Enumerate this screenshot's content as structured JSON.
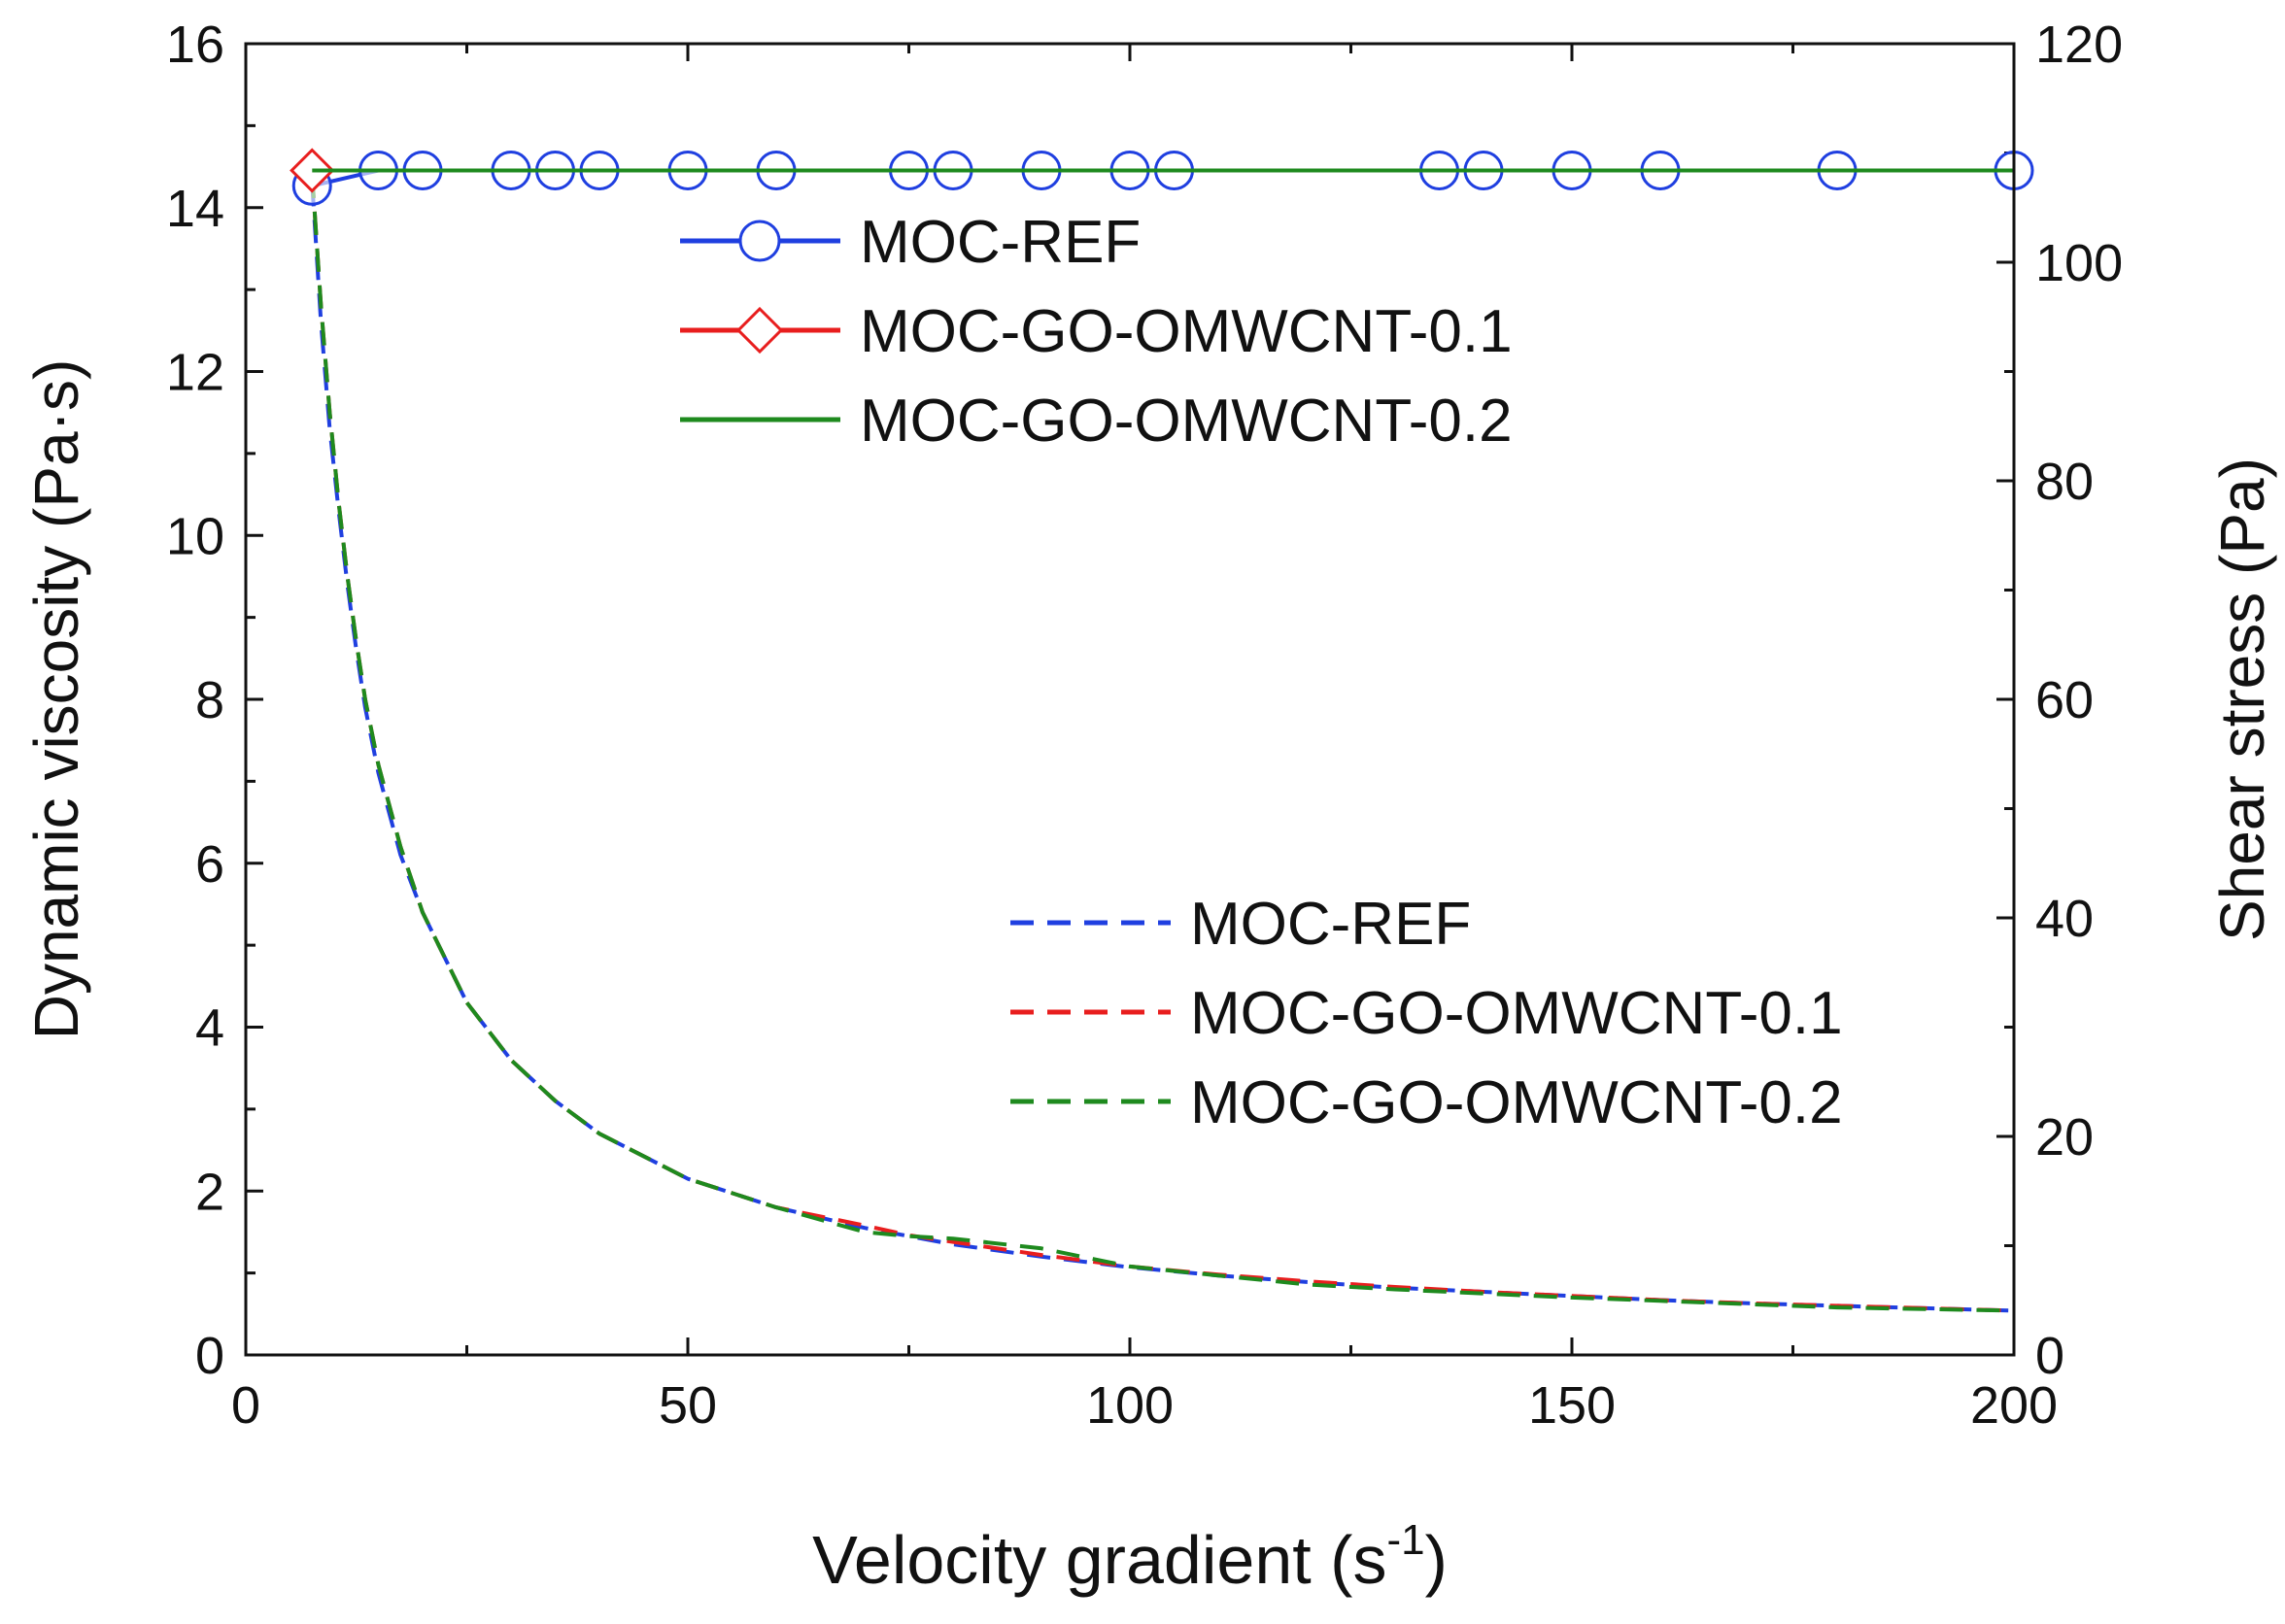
{
  "chart_data": {
    "type": "line",
    "x_axis": {
      "label": "Velocity gradient (s",
      "label_sup": "-1",
      "label_end": ")",
      "range": [
        0,
        200
      ],
      "ticks": [
        0,
        50,
        100,
        150,
        200
      ],
      "tick_labels": [
        "0",
        "50",
        "100",
        "150",
        "200"
      ]
    },
    "y_left": {
      "label": "Dynamic viscosity (Pa·s)",
      "range": [
        0,
        16
      ],
      "ticks": [
        0,
        2,
        4,
        6,
        8,
        10,
        12,
        14,
        16
      ],
      "tick_labels": [
        "0",
        "2",
        "4",
        "6",
        "8",
        "10",
        "12",
        "14",
        "16"
      ]
    },
    "y_right": {
      "label": "Shear stress (Pa)",
      "range": [
        0,
        120
      ],
      "ticks": [
        0,
        20,
        40,
        60,
        80,
        100,
        120
      ],
      "tick_labels": [
        "0",
        "20",
        "40",
        "60",
        "80",
        "100",
        "120"
      ]
    },
    "grid": false,
    "legend_top": {
      "placement": "top-center",
      "entries": [
        "MOC-REF",
        "MOC-GO-OMWCNT-0.1",
        "MOC-GO-OMWCNT-0.2"
      ]
    },
    "legend_bottom": {
      "placement": "bottom-right",
      "entries": [
        "MOC-REF",
        "MOC-GO-OMWCNT-0.1",
        "MOC-GO-OMWCNT-0.2"
      ]
    },
    "series": [
      {
        "name": "MOC-REF",
        "axis": "right",
        "style": "solid-circle",
        "color": "#1f3fe0",
        "x": [
          7.5,
          15,
          20,
          30,
          35,
          40,
          50,
          60,
          75,
          80,
          90,
          100,
          105,
          135,
          140,
          150,
          160,
          180,
          200
        ],
        "y": [
          107,
          108.4,
          108.4,
          108.4,
          108.4,
          108.4,
          108.4,
          108.4,
          108.4,
          108.4,
          108.4,
          108.4,
          108.4,
          108.4,
          108.4,
          108.4,
          108.4,
          108.4,
          108.4
        ]
      },
      {
        "name": "MOC-GO-OMWCNT-0.1",
        "axis": "right",
        "style": "solid-diamond",
        "color": "#e81e1e",
        "x": [
          7.5,
          200
        ],
        "y": [
          108.4,
          108.4
        ]
      },
      {
        "name": "MOC-GO-OMWCNT-0.2",
        "axis": "right",
        "style": "solid",
        "color": "#1e8a1e",
        "x": [
          7.5,
          200
        ],
        "y": [
          108.4,
          108.4
        ]
      },
      {
        "name": "MOC-REF",
        "axis": "left",
        "style": "dashed",
        "color": "#1f3fe0",
        "x": [
          7.5,
          8.5,
          9.5,
          10.5,
          11.5,
          12.5,
          13.5,
          15,
          17.5,
          20,
          25,
          30,
          35,
          40,
          50,
          60,
          70,
          75,
          80,
          90,
          100,
          110,
          120,
          130,
          140,
          150,
          160,
          170,
          180,
          190,
          200
        ],
        "y": [
          14.3,
          12.6,
          11.3,
          10.3,
          9.4,
          8.6,
          7.9,
          7.1,
          6.1,
          5.4,
          4.3,
          3.6,
          3.1,
          2.7,
          2.15,
          1.8,
          1.55,
          1.45,
          1.35,
          1.2,
          1.07,
          0.97,
          0.89,
          0.82,
          0.77,
          0.72,
          0.67,
          0.63,
          0.6,
          0.57,
          0.54
        ]
      },
      {
        "name": "MOC-GO-OMWCNT-0.1",
        "axis": "left",
        "style": "dashed",
        "color": "#e81e1e",
        "x": [
          7.5,
          8.5,
          9.5,
          10.5,
          11.5,
          12.5,
          13.5,
          15,
          17.5,
          20,
          25,
          30,
          35,
          40,
          50,
          60,
          70,
          75,
          80,
          90,
          100,
          110,
          120,
          130,
          140,
          150,
          160,
          170,
          180,
          190,
          200
        ],
        "y": [
          14.4,
          12.8,
          11.5,
          10.4,
          9.5,
          8.7,
          8.0,
          7.2,
          6.2,
          5.4,
          4.3,
          3.6,
          3.1,
          2.7,
          2.15,
          1.8,
          1.58,
          1.46,
          1.38,
          1.22,
          1.08,
          0.98,
          0.9,
          0.83,
          0.77,
          0.72,
          0.67,
          0.63,
          0.6,
          0.57,
          0.54
        ]
      },
      {
        "name": "MOC-GO-OMWCNT-0.2",
        "axis": "left",
        "style": "dashed",
        "color": "#1e8a1e",
        "x": [
          7.5,
          8.5,
          9.5,
          10.5,
          11.5,
          12.5,
          13.5,
          15,
          17.5,
          20,
          25,
          30,
          35,
          40,
          50,
          60,
          70,
          75,
          80,
          90,
          100,
          110,
          120,
          130,
          140,
          150,
          160,
          170,
          180,
          190,
          200
        ],
        "y": [
          14.4,
          12.8,
          11.5,
          10.4,
          9.5,
          8.7,
          8.0,
          7.2,
          6.2,
          5.4,
          4.3,
          3.6,
          3.1,
          2.7,
          2.15,
          1.8,
          1.5,
          1.45,
          1.42,
          1.3,
          1.08,
          0.97,
          0.86,
          0.8,
          0.75,
          0.7,
          0.66,
          0.62,
          0.58,
          0.56,
          0.54
        ]
      }
    ]
  }
}
